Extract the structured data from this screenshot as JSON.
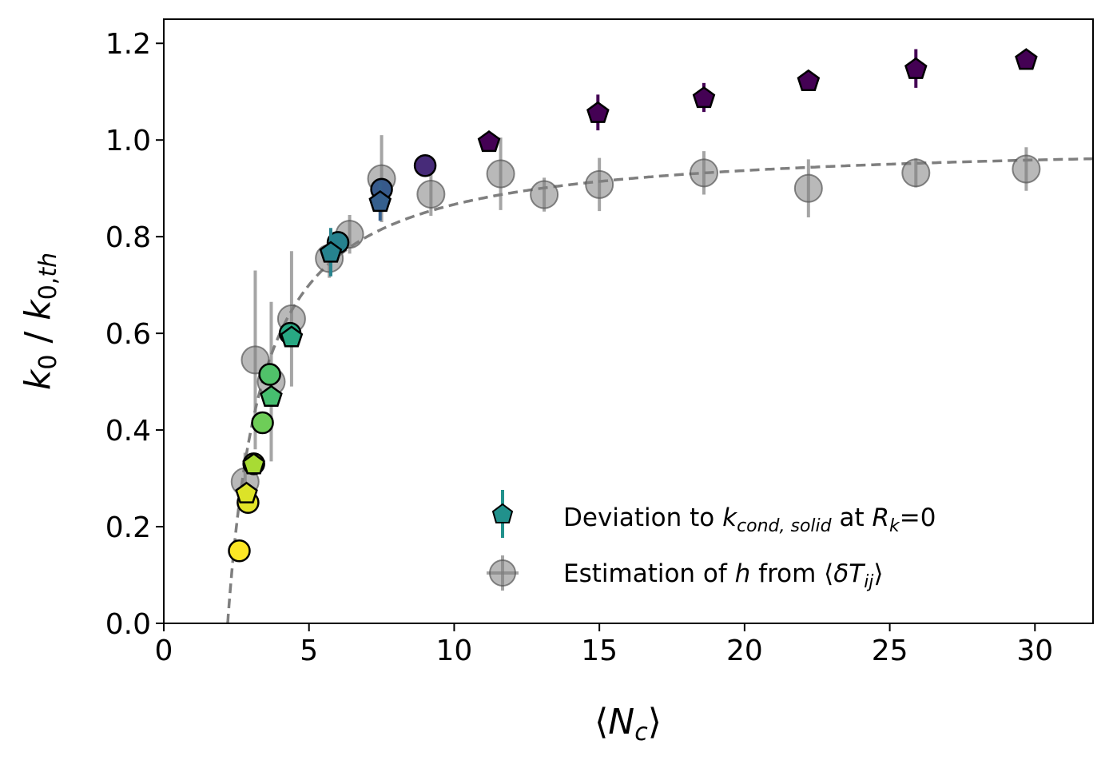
{
  "chart_data": {
    "type": "scatter",
    "xlabel": "⟨N_c⟩",
    "ylabel": "k_0 / k_0,th",
    "xlim": [
      0,
      32
    ],
    "ylim": [
      0,
      1.25
    ],
    "x_ticks": [
      "0",
      "5",
      "10",
      "15",
      "20",
      "25",
      "30"
    ],
    "y_ticks": [
      "0.0",
      "0.2",
      "0.4",
      "0.6",
      "0.8",
      "1.0",
      "1.2"
    ],
    "grid": false,
    "legend_position": "lower-right",
    "legend": [
      {
        "text_prefix": "Deviation to ",
        "text_var": "k",
        "text_sub": "cond, solid",
        "text_mid": " at ",
        "text_var2": "R",
        "text_sub2": "k",
        "text_suffix": "=0"
      },
      {
        "text_prefix": "Estimation of ",
        "text_var": "h",
        "text_mid": " from ⟨",
        "text_var2": "δT",
        "text_sub2": "ij",
        "text_suffix": "⟩"
      }
    ],
    "fit_curve": {
      "style": "dashed",
      "color": "#7f7f7f",
      "k_max": 1.0,
      "n0": 2.2,
      "scale": 1.2
    },
    "series": [
      {
        "marker": "circle",
        "color_mode": "gray",
        "points": [
          {
            "x": 2.8,
            "y": 0.293,
            "yerr": 0.06
          },
          {
            "x": 3.15,
            "y": 0.545,
            "yerr": 0.185
          },
          {
            "x": 3.7,
            "y": 0.5,
            "yerr": 0.165
          },
          {
            "x": 4.4,
            "y": 0.63,
            "yerr": 0.14
          },
          {
            "x": 5.7,
            "y": 0.755,
            "yerr": 0.04
          },
          {
            "x": 6.4,
            "y": 0.805,
            "yerr": 0.04
          },
          {
            "x": 7.5,
            "y": 0.92,
            "yerr": 0.09
          },
          {
            "x": 9.2,
            "y": 0.888,
            "yerr": 0.045
          },
          {
            "x": 11.6,
            "y": 0.93,
            "yerr": 0.075
          },
          {
            "x": 13.1,
            "y": 0.887,
            "yerr": 0.035
          },
          {
            "x": 15.0,
            "y": 0.908,
            "yerr": 0.055
          },
          {
            "x": 18.6,
            "y": 0.932,
            "yerr": 0.045
          },
          {
            "x": 22.2,
            "y": 0.9,
            "yerr": 0.06
          },
          {
            "x": 25.9,
            "y": 0.932,
            "yerr": 0.03
          },
          {
            "x": 29.7,
            "y": 0.94,
            "yerr": 0.045
          }
        ]
      },
      {
        "marker": "circle",
        "color_mode": "viridis",
        "points": [
          {
            "x": 2.6,
            "y": 0.15,
            "c": 1.0
          },
          {
            "x": 2.9,
            "y": 0.25,
            "c": 0.96
          },
          {
            "x": 3.1,
            "y": 0.33,
            "c": 0.88
          },
          {
            "x": 3.4,
            "y": 0.415,
            "c": 0.78
          },
          {
            "x": 3.65,
            "y": 0.515,
            "c": 0.72
          },
          {
            "x": 4.35,
            "y": 0.6,
            "c": 0.6
          },
          {
            "x": 6.0,
            "y": 0.788,
            "c": 0.44
          },
          {
            "x": 7.5,
            "y": 0.898,
            "c": 0.28
          },
          {
            "x": 9.0,
            "y": 0.947,
            "c": 0.12
          }
        ]
      },
      {
        "marker": "pentagon",
        "color_mode": "viridis",
        "points": [
          {
            "x": 2.85,
            "y": 0.27,
            "c": 0.95,
            "yerr": 0.0
          },
          {
            "x": 3.1,
            "y": 0.33,
            "c": 0.87,
            "yerr": 0.0
          },
          {
            "x": 3.7,
            "y": 0.47,
            "c": 0.7,
            "yerr": 0.0
          },
          {
            "x": 4.4,
            "y": 0.593,
            "c": 0.6,
            "yerr": 0.0
          },
          {
            "x": 5.75,
            "y": 0.768,
            "c": 0.45,
            "yerr": 0.05
          },
          {
            "x": 7.45,
            "y": 0.873,
            "c": 0.3,
            "yerr": 0.04
          },
          {
            "x": 11.2,
            "y": 0.997,
            "c": 0.0,
            "yerr": 0.0
          },
          {
            "x": 14.95,
            "y": 1.057,
            "c": 0.0,
            "yerr": 0.037
          },
          {
            "x": 18.6,
            "y": 1.088,
            "c": 0.0,
            "yerr": 0.03
          },
          {
            "x": 22.2,
            "y": 1.123,
            "c": 0.0,
            "yerr": 0.0
          },
          {
            "x": 25.9,
            "y": 1.148,
            "c": 0.0,
            "yerr": 0.04
          },
          {
            "x": 29.7,
            "y": 1.167,
            "c": 0.0,
            "yerr": 0.0
          }
        ]
      }
    ]
  }
}
